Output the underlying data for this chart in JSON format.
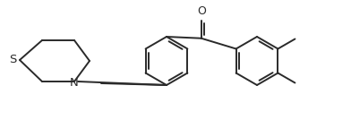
{
  "bg_color": "#ffffff",
  "line_color": "#2a2a2a",
  "line_width": 1.4,
  "fig_width": 3.92,
  "fig_height": 1.34,
  "dpi": 100,
  "xlim": [
    0.0,
    3.92
  ],
  "ylim": [
    0.0,
    1.34
  ]
}
